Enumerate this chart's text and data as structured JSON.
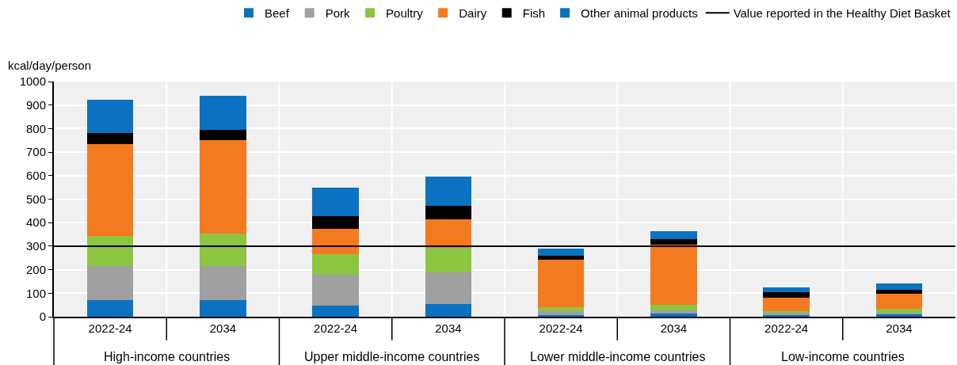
{
  "chart_data": {
    "type": "bar",
    "stacked": true,
    "ylabel": "kcal/day/person",
    "categories": [
      "2022-24",
      "2034",
      "2022-24",
      "2034",
      "2022-24",
      "2034",
      "2022-24",
      "2034"
    ],
    "annotations": [
      "High-income countries",
      "Upper middle-income countries",
      "Lower middle-income countries",
      "Low-income countries"
    ],
    "series": [
      {
        "name": "Beef",
        "color": "#0b72c1",
        "values": [
          70,
          70,
          47,
          53,
          8,
          13,
          8,
          10
        ]
      },
      {
        "name": "Pork",
        "color": "#a0a0a0",
        "values": [
          145,
          145,
          131,
          137,
          16,
          15,
          12,
          8
        ]
      },
      {
        "name": "Poultry",
        "color": "#8cc641",
        "values": [
          127,
          138,
          87,
          103,
          18,
          23,
          2,
          15
        ]
      },
      {
        "name": "Dairy",
        "color": "#f47a20",
        "values": [
          393,
          397,
          110,
          120,
          200,
          255,
          58,
          64
        ]
      },
      {
        "name": "Fish",
        "color": "#000000",
        "values": [
          45,
          43,
          53,
          59,
          18,
          23,
          23,
          18
        ]
      },
      {
        "name": "Other animal products",
        "color": "#0b72c1",
        "values": [
          142,
          147,
          120,
          123,
          30,
          36,
          20,
          26
        ]
      }
    ],
    "ref_lines": [
      {
        "axis": "y",
        "value": 300,
        "label": "Value reported in the Healthy Diet Basket",
        "color": "#000000"
      }
    ],
    "ylim": [
      0,
      1000
    ],
    "yticks": [
      0,
      100,
      200,
      300,
      400,
      500,
      600,
      700,
      800,
      900,
      1000
    ],
    "grid": true,
    "legend": "top"
  }
}
